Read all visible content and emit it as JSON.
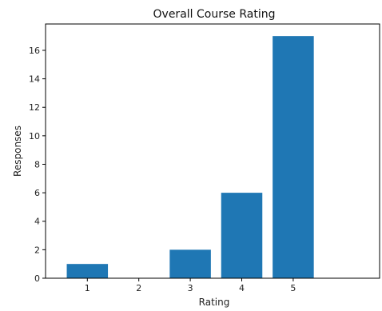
{
  "chart_data": {
    "type": "bar",
    "title": "Overall Course Rating",
    "xlabel": "Rating",
    "ylabel": "Responses",
    "categories": [
      "1",
      "2",
      "3",
      "4",
      "5"
    ],
    "values": [
      1,
      0,
      2,
      6,
      17
    ],
    "ylim": [
      0,
      17.85
    ],
    "yticks": [
      "0",
      "2",
      "4",
      "6",
      "8",
      "10",
      "12",
      "14",
      "16"
    ],
    "grid": false,
    "bar_color": "#1f77b4"
  }
}
